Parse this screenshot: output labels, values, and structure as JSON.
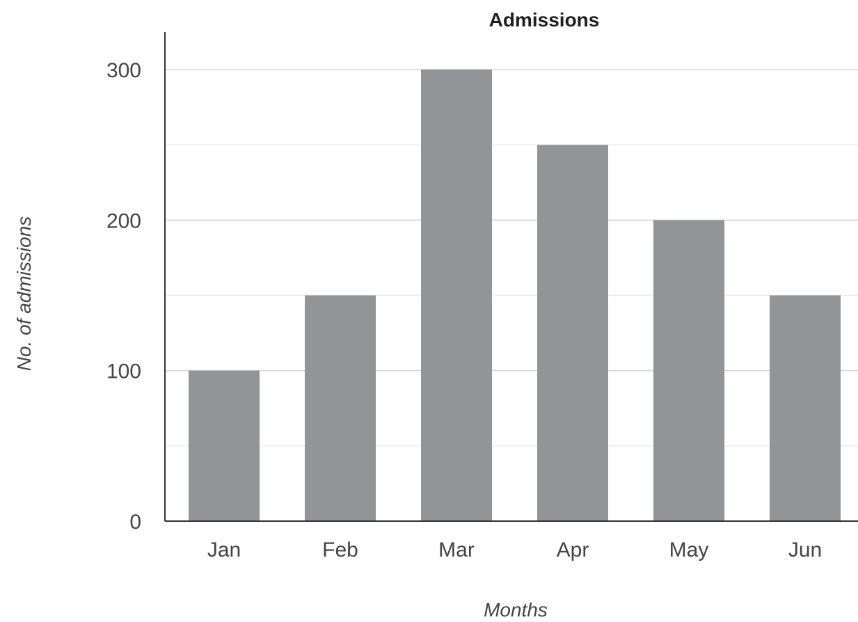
{
  "chart_data": {
    "type": "bar",
    "title": "Admissions",
    "xlabel": "Months",
    "ylabel": "No. of admissions",
    "categories": [
      "Jan",
      "Feb",
      "Mar",
      "Apr",
      "May",
      "Jun"
    ],
    "values": [
      100,
      150,
      300,
      250,
      200,
      150
    ],
    "ylim": [
      0,
      300
    ],
    "yticks": [
      "0",
      "100",
      "200",
      "300"
    ],
    "grid": true,
    "legend": "none",
    "bar_color": "#919597"
  }
}
